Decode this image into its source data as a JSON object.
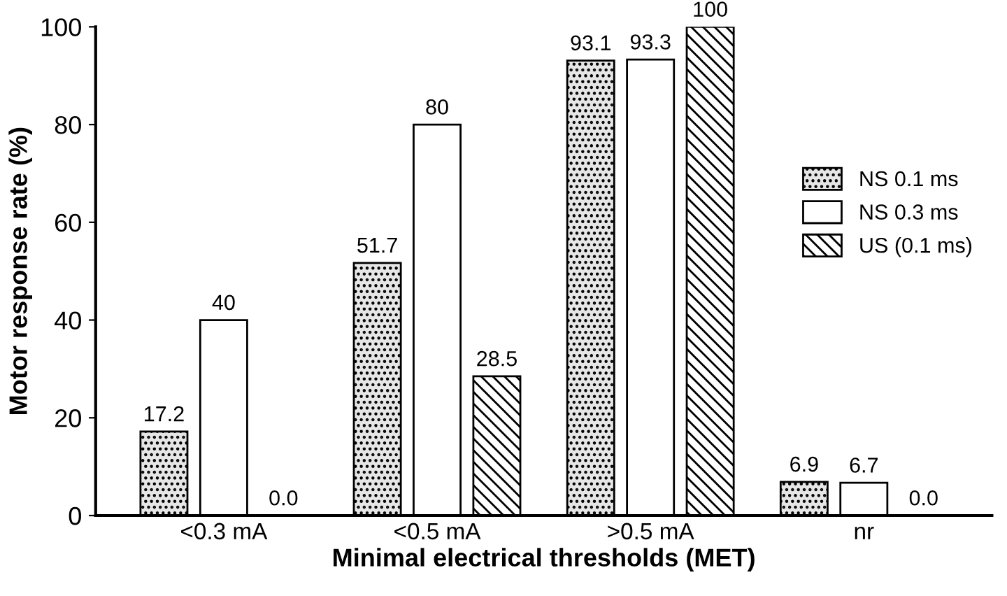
{
  "chart_data": {
    "type": "bar",
    "xlabel": "Minimal electrical thresholds (MET)",
    "ylabel": "Motor response rate (%)",
    "categories": [
      "<0.3 mA",
      "<0.5 mA",
      ">0.5 mA",
      "nr"
    ],
    "series": [
      {
        "name": "NS 0.1 ms",
        "color": "#e6e6e6",
        "values": [
          17.2,
          51.7,
          93.1,
          6.9
        ],
        "value_labels": [
          "17.2",
          "51.7",
          "93.1",
          "6.9"
        ]
      },
      {
        "name": "NS 0.3 ms",
        "color": "#ffffff",
        "values": [
          40,
          80,
          93.3,
          6.7
        ],
        "value_labels": [
          "40",
          "80",
          "93.3",
          "6.7"
        ]
      },
      {
        "name": "US (0.1 ms)",
        "color": "#ffffff",
        "values": [
          0,
          28.5,
          100,
          0
        ],
        "value_labels": [
          "0.0",
          "28.5",
          "100",
          "0.0"
        ]
      }
    ],
    "ylim": [
      0,
      100
    ],
    "yticks": [
      0,
      20,
      40,
      60,
      80,
      100
    ],
    "grid": false,
    "legend": "right"
  }
}
